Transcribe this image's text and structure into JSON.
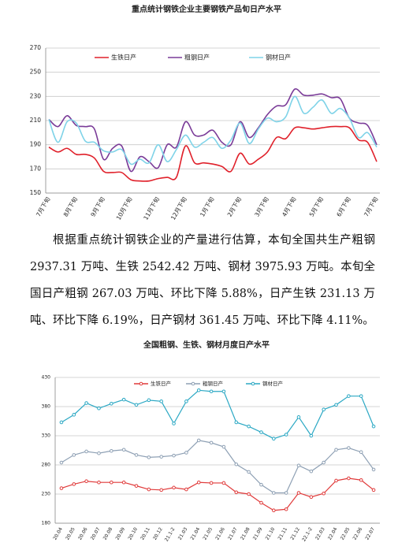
{
  "chart_data": [
    {
      "type": "line",
      "title": "重点统计钢铁企业主要钢铁产品旬日产水平",
      "smooth": true,
      "grid": true,
      "categories": [
        "7月下旬",
        null,
        null,
        "8月下旬",
        null,
        null,
        "9月下旬",
        null,
        null,
        "10月下旬",
        null,
        null,
        "11月下旬",
        null,
        null,
        "12月下旬",
        null,
        null,
        "1月下旬",
        null,
        null,
        "2月下旬",
        null,
        null,
        "3月下旬",
        null,
        null,
        "4月下旬",
        null,
        null,
        "5月下旬",
        null,
        null,
        "6月下旬",
        null,
        null,
        "7月下旬"
      ],
      "ylim": [
        150,
        270
      ],
      "yticks": [
        150,
        170,
        190,
        210,
        230,
        250,
        270
      ],
      "series": [
        {
          "name": "生铁日产",
          "color": "#e0202a",
          "values": [
            188,
            184,
            187,
            182,
            182,
            179,
            168,
            167,
            167,
            161,
            160,
            160,
            162,
            163,
            163,
            189,
            175,
            175,
            174,
            172,
            168,
            183,
            174,
            178,
            184,
            196,
            195,
            204,
            204,
            203,
            204,
            205,
            205,
            204,
            194,
            192,
            176
          ]
        },
        {
          "name": "粗钢日产",
          "color": "#7a3b98",
          "values": [
            211,
            205,
            214,
            206,
            205,
            203,
            178,
            187,
            189,
            168,
            180,
            176,
            171,
            190,
            188,
            209,
            198,
            198,
            202,
            192,
            190,
            209,
            196,
            204,
            215,
            222,
            223,
            236,
            231,
            231,
            232,
            229,
            228,
            212,
            208,
            206,
            190
          ]
        },
        {
          "name": "钢材日产",
          "color": "#7fd3e8",
          "values": [
            211,
            192,
            209,
            208,
            193,
            192,
            185,
            184,
            186,
            174,
            178,
            175,
            190,
            176,
            186,
            198,
            188,
            192,
            196,
            187,
            194,
            208,
            191,
            203,
            212,
            209,
            213,
            230,
            216,
            221,
            227,
            216,
            220,
            212,
            196,
            200,
            188
          ]
        }
      ]
    },
    {
      "type": "line",
      "title": "全国粗钢、生铁、钢材月度日产水平",
      "smooth": false,
      "markers": true,
      "grid": true,
      "categories": [
        "20.04",
        "20.05",
        "20.06",
        "20.07",
        "20.08",
        "20.09",
        "20.10",
        "20.11",
        "20.12",
        "21.1-2",
        "21.03",
        "21.04",
        "21.05",
        "21.06",
        "21.07",
        "21.08",
        "21.09",
        "21.10",
        "21.11",
        "21.12",
        "22.1-2",
        "22.03",
        "22.04",
        "22.05",
        "22.06",
        "22.07"
      ],
      "ylim": [
        180,
        430
      ],
      "yticks": [
        180,
        230,
        280,
        330,
        380,
        430
      ],
      "series": [
        {
          "name": "生铁日产",
          "color": "#e03a3a",
          "values": [
            240,
            247,
            252,
            250,
            250,
            250,
            244,
            238,
            237,
            241,
            238,
            250,
            249,
            249,
            233,
            230,
            215,
            202,
            204,
            232,
            225,
            231,
            253,
            257,
            254,
            237
          ]
        },
        {
          "name": "粗钢日产",
          "color": "#8ea0b4",
          "values": [
            284,
            297,
            303,
            300,
            304,
            306,
            297,
            293,
            294,
            296,
            301,
            322,
            318,
            311,
            281,
            268,
            246,
            232,
            232,
            279,
            269,
            284,
            306,
            309,
            302,
            272
          ]
        },
        {
          "name": "钢材日产",
          "color": "#2ba8c4",
          "values": [
            353,
            366,
            386,
            377,
            385,
            392,
            383,
            391,
            389,
            351,
            389,
            408,
            406,
            406,
            353,
            346,
            336,
            325,
            332,
            362,
            330,
            375,
            383,
            398,
            398,
            346
          ]
        }
      ]
    }
  ],
  "paragraph": "根据重点统计钢铁企业的产量进行估算，本旬全国共生产粗钢 2937.31 万吨、生铁 2542.42 万吨、钢材 3975.93 万吨。本旬全国日产粗钢 267.03 万吨、环比下降 5.88%，日产生铁 231.13 万吨、环比下降 6.19%，日产钢材 361.45 万吨、环比下降 4.11%。"
}
